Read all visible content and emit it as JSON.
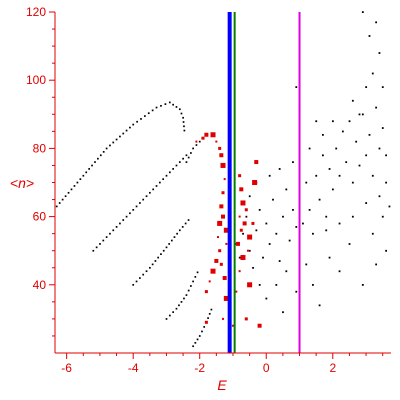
{
  "chart_data": {
    "type": "scatter",
    "xlabel": "E",
    "ylabel": "<n>",
    "xlim": [
      -6.35,
      3.75
    ],
    "ylim": [
      20,
      120
    ],
    "x_ticks": [
      -6,
      -4,
      -2,
      0,
      2
    ],
    "y_ticks": [
      40,
      60,
      80,
      100,
      120
    ],
    "grid": false,
    "colors": {
      "axis": "#e00000",
      "black_series": "#000000",
      "red_series": "#e00000",
      "blue_line": "#0000ff",
      "green_line": "#008000",
      "magenta_line": "#e000e0"
    },
    "vertical_lines": [
      {
        "x": -1.1,
        "color": "#0000ff",
        "width_units": 0.12
      },
      {
        "x": -0.95,
        "color": "#008000",
        "width_units": 0.04
      },
      {
        "x": 1.0,
        "color": "#e000e0",
        "width_units": 0.04
      }
    ],
    "series": [
      {
        "kind": "line-dots",
        "color": "#000000",
        "segments": [
          [
            [
              -6.3,
              63
            ],
            [
              -5.5,
              72
            ],
            [
              -4.8,
              80
            ],
            [
              -4.0,
              87
            ],
            [
              -3.3,
              92
            ],
            [
              -2.9,
              93.5
            ],
            [
              -2.6,
              91.5
            ],
            [
              -2.5,
              89
            ],
            [
              -2.45,
              84
            ]
          ],
          [
            [
              -5.2,
              50
            ],
            [
              -4.6,
              56
            ],
            [
              -4.0,
              62
            ],
            [
              -3.5,
              67
            ],
            [
              -3.0,
              72
            ],
            [
              -2.6,
              76
            ],
            [
              -2.3,
              79
            ]
          ],
          [
            [
              -4.0,
              40
            ],
            [
              -3.5,
              45
            ],
            [
              -3.0,
              51
            ],
            [
              -2.6,
              56
            ],
            [
              -2.25,
              60
            ]
          ],
          [
            [
              -3.0,
              30
            ],
            [
              -2.7,
              33
            ],
            [
              -2.4,
              37
            ],
            [
              -2.2,
              41
            ],
            [
              -2.0,
              45
            ]
          ],
          [
            [
              -2.2,
              22
            ],
            [
              -2.0,
              25
            ],
            [
              -1.8,
              29
            ],
            [
              -1.6,
              34
            ]
          ],
          [
            [
              -2.4,
              76
            ],
            [
              -2.2,
              80
            ],
            [
              -2.0,
              82
            ],
            [
              -1.85,
              84
            ]
          ]
        ]
      },
      {
        "kind": "cloud",
        "color": "#000000",
        "points": [
          [
            -0.9,
            52
          ],
          [
            -0.8,
            48
          ],
          [
            -0.7,
            55
          ],
          [
            -0.6,
            60
          ],
          [
            -0.5,
            50
          ],
          [
            -0.4,
            45
          ],
          [
            -0.3,
            56
          ],
          [
            -0.2,
            62
          ],
          [
            -0.1,
            48
          ],
          [
            0.0,
            58
          ],
          [
            0.1,
            52
          ],
          [
            0.2,
            65
          ],
          [
            0.3,
            55
          ],
          [
            0.4,
            47
          ],
          [
            0.5,
            60
          ],
          [
            0.6,
            68
          ],
          [
            0.7,
            53
          ],
          [
            0.8,
            62
          ],
          [
            0.9,
            57
          ],
          [
            1.0,
            66
          ],
          [
            1.1,
            58
          ],
          [
            1.2,
            70
          ],
          [
            1.3,
            62
          ],
          [
            1.4,
            55
          ],
          [
            1.5,
            72
          ],
          [
            1.6,
            65
          ],
          [
            1.7,
            78
          ],
          [
            1.8,
            60
          ],
          [
            1.9,
            74
          ],
          [
            2.0,
            68
          ],
          [
            2.1,
            80
          ],
          [
            2.2,
            72
          ],
          [
            2.3,
            85
          ],
          [
            2.4,
            76
          ],
          [
            2.5,
            88
          ],
          [
            2.6,
            70
          ],
          [
            2.7,
            82
          ],
          [
            2.8,
            75
          ],
          [
            2.9,
            90
          ],
          [
            3.0,
            78
          ],
          [
            3.1,
            84
          ],
          [
            3.2,
            72
          ],
          [
            3.3,
            92
          ],
          [
            3.4,
            80
          ],
          [
            3.5,
            86
          ],
          [
            3.6,
            70
          ],
          [
            2.2,
            58
          ],
          [
            2.6,
            60
          ],
          [
            3.0,
            64
          ],
          [
            3.4,
            66
          ],
          [
            0.3,
            40
          ],
          [
            0.6,
            44
          ],
          [
            0.9,
            38
          ],
          [
            1.2,
            46
          ],
          [
            1.6,
            34
          ],
          [
            1.9,
            48
          ],
          [
            2.5,
            52
          ],
          [
            3.2,
            55
          ],
          [
            3.5,
            60
          ],
          [
            3.6,
            50
          ],
          [
            -0.5,
            66
          ],
          [
            -0.3,
            70
          ],
          [
            0.1,
            72
          ],
          [
            0.4,
            74
          ],
          [
            0.8,
            76
          ],
          [
            1.3,
            80
          ],
          [
            1.7,
            84
          ],
          [
            2.0,
            88
          ],
          [
            2.6,
            94
          ],
          [
            3.0,
            98
          ],
          [
            3.2,
            102
          ],
          [
            3.4,
            108
          ],
          [
            3.1,
            113
          ],
          [
            3.3,
            117
          ],
          [
            2.9,
            120
          ],
          [
            3.5,
            98
          ],
          [
            2.8,
            90
          ],
          [
            1.5,
            88
          ],
          [
            1.0,
            92
          ],
          [
            0.9,
            98
          ],
          [
            -0.2,
            40
          ],
          [
            0.0,
            36
          ],
          [
            0.5,
            32
          ],
          [
            1.4,
            40
          ],
          [
            2.2,
            44
          ],
          [
            2.9,
            40
          ],
          [
            3.3,
            46
          ],
          [
            3.7,
            63
          ],
          [
            3.6,
            78
          ],
          [
            1.8,
            56
          ]
        ]
      },
      {
        "kind": "red-markers",
        "color": "#e00000",
        "points": [
          [
            -2.1,
            82
          ],
          [
            -1.9,
            83
          ],
          [
            -1.8,
            84
          ],
          [
            -1.6,
            84
          ],
          [
            -1.5,
            82
          ],
          [
            -1.4,
            80
          ],
          [
            -1.35,
            78
          ],
          [
            -1.3,
            75
          ],
          [
            -1.25,
            71
          ],
          [
            -1.3,
            67
          ],
          [
            -1.35,
            63
          ],
          [
            -1.4,
            58
          ],
          [
            -1.45,
            54
          ],
          [
            -1.4,
            50
          ],
          [
            -1.5,
            47
          ],
          [
            -1.6,
            44
          ],
          [
            -1.7,
            41
          ],
          [
            -1.8,
            38
          ],
          [
            -1.3,
            60
          ],
          [
            -1.2,
            56
          ],
          [
            -1.2,
            52
          ],
          [
            -1.35,
            46
          ],
          [
            -1.25,
            42
          ],
          [
            -1.2,
            36
          ],
          [
            -1.3,
            30
          ],
          [
            -0.8,
            72
          ],
          [
            -0.75,
            68
          ],
          [
            -0.7,
            64
          ],
          [
            -0.8,
            60
          ],
          [
            -0.75,
            56
          ],
          [
            -0.85,
            52
          ],
          [
            -0.7,
            48
          ],
          [
            -0.8,
            44
          ],
          [
            -0.6,
            62
          ],
          [
            -0.65,
            58
          ],
          [
            -0.5,
            54
          ],
          [
            -0.55,
            50
          ],
          [
            -0.4,
            58
          ],
          [
            -0.3,
            76
          ],
          [
            -0.35,
            70
          ],
          [
            -0.9,
            38
          ],
          [
            -0.6,
            30
          ],
          [
            -0.2,
            28
          ],
          [
            -0.5,
            40
          ],
          [
            -1.0,
            28
          ],
          [
            -1.8,
            29
          ]
        ]
      }
    ]
  }
}
